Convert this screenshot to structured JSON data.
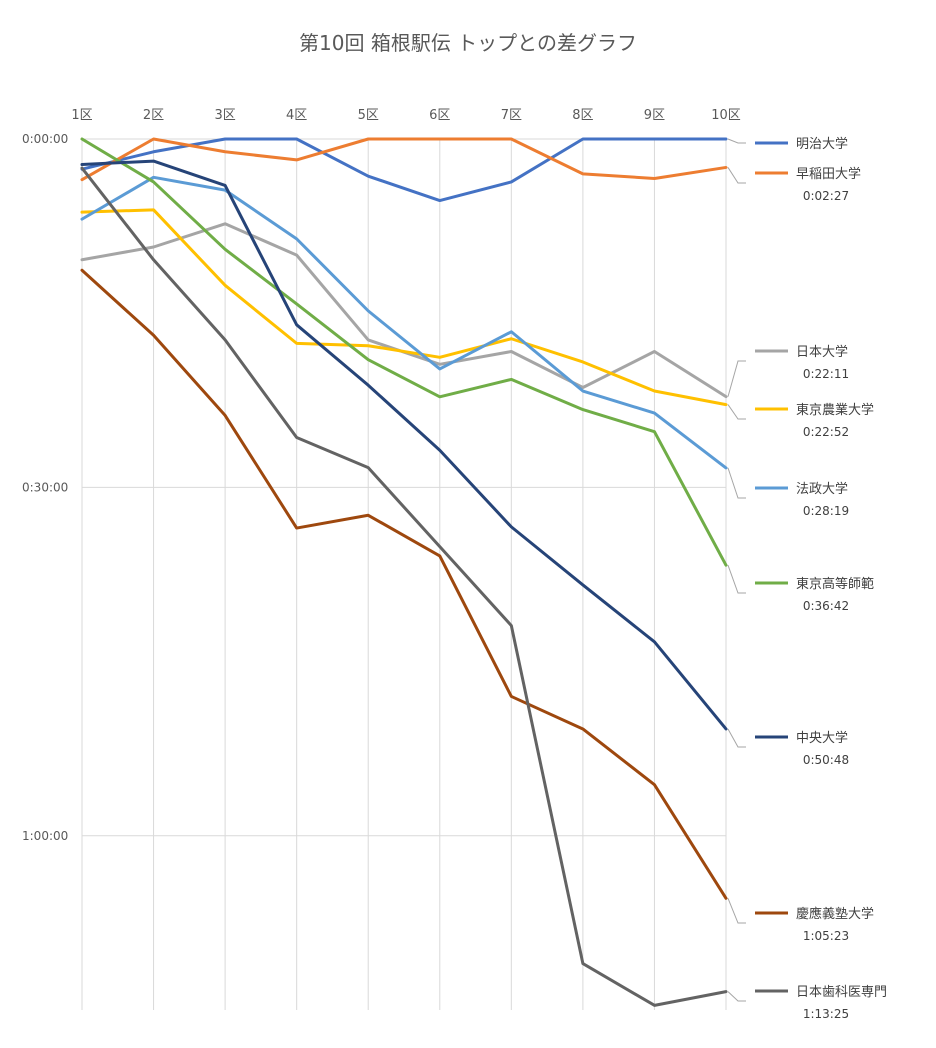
{
  "chart_data": {
    "type": "line",
    "title": "第10回 箱根駅伝 トップとの差グラフ",
    "categories": [
      "1区",
      "2区",
      "3区",
      "4区",
      "5区",
      "6区",
      "7区",
      "8区",
      "9区",
      "10区"
    ],
    "y_ticks": [
      "0:00:00",
      "0:30:00",
      "1:00:00"
    ],
    "y_axis": {
      "reversed": true,
      "min_minutes": 0,
      "max_minutes": 75
    },
    "grid": true,
    "legend_position": "right",
    "series": [
      {
        "name": "明治大学",
        "final_gap": "",
        "color": "#4472C4",
        "values": [
          2.6,
          1.1,
          0.0,
          0.0,
          3.2,
          5.3,
          3.7,
          0.0,
          0.0,
          0.0
        ]
      },
      {
        "name": "早稲田大学",
        "final_gap": "0:02:27",
        "color": "#ED7D31",
        "values": [
          3.5,
          0.0,
          1.1,
          1.8,
          0.0,
          0.0,
          0.0,
          3.0,
          3.4,
          2.45
        ]
      },
      {
        "name": "日本大学",
        "final_gap": "0:22:11",
        "color": "#A5A5A5",
        "values": [
          10.4,
          9.3,
          7.3,
          10.0,
          17.3,
          19.4,
          18.3,
          21.4,
          18.3,
          22.18
        ]
      },
      {
        "name": "東京農業大学",
        "final_gap": "0:22:52",
        "color": "#FFC000",
        "values": [
          6.3,
          6.1,
          12.6,
          17.6,
          17.8,
          18.8,
          17.2,
          19.2,
          21.7,
          22.87
        ]
      },
      {
        "name": "法政大学",
        "final_gap": "0:28:19",
        "color": "#5B9BD5",
        "values": [
          6.9,
          3.3,
          4.4,
          8.6,
          14.8,
          19.8,
          16.6,
          21.7,
          23.6,
          28.32
        ]
      },
      {
        "name": "東京高等師範",
        "final_gap": "0:36:42",
        "color": "#70AD47",
        "values": [
          0.0,
          3.7,
          9.5,
          14.2,
          19.0,
          22.2,
          20.7,
          23.3,
          25.2,
          36.7
        ]
      },
      {
        "name": "中央大学",
        "final_gap": "0:50:48",
        "color": "#264478",
        "values": [
          2.2,
          1.9,
          4.0,
          16.0,
          21.2,
          26.8,
          33.4,
          38.4,
          43.3,
          50.8
        ]
      },
      {
        "name": "慶應義塾大学",
        "final_gap": "1:05:23",
        "color": "#9E480E",
        "values": [
          11.3,
          16.9,
          23.8,
          33.5,
          32.4,
          35.9,
          48.0,
          50.8,
          55.6,
          65.38
        ]
      },
      {
        "name": "日本歯科医専門",
        "final_gap": "1:13:25",
        "color": "#636363",
        "values": [
          2.5,
          10.4,
          17.3,
          25.7,
          28.3,
          35.1,
          41.9,
          71.0,
          74.6,
          73.42
        ]
      }
    ]
  }
}
